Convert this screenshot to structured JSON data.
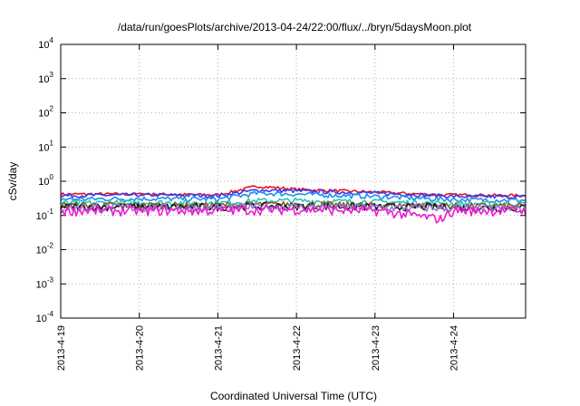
{
  "chart_data": {
    "type": "line",
    "title": "/data/run/goesPlots/archive/2013-04-24/22:00/flux/../bryn/5daysMoon.plot",
    "xlabel": "Coordinated Universal Time (UTC)",
    "ylabel": "cSv/day",
    "y_scale": "log",
    "ylim": [
      0.0001,
      10000
    ],
    "xlim": [
      "2013-04-19",
      "2013-04-24 22:00"
    ],
    "grid": true,
    "x_ticks": [
      "2013-4-19",
      "2013-4-20",
      "2013-4-21",
      "2013-4-22",
      "2013-4-23",
      "2013-4-24"
    ],
    "y_ticks": [
      {
        "base": "10",
        "exp": "-4"
      },
      {
        "base": "10",
        "exp": "-3"
      },
      {
        "base": "10",
        "exp": "-2"
      },
      {
        "base": "10",
        "exp": "-1"
      },
      {
        "base": "10",
        "exp": "0"
      },
      {
        "base": "10",
        "exp": "1"
      },
      {
        "base": "10",
        "exp": "2"
      },
      {
        "base": "10",
        "exp": "3"
      },
      {
        "base": "10",
        "exp": "4"
      }
    ],
    "x": [
      "2013-04-19",
      "2013-04-20",
      "2013-04-21",
      "2013-04-21 12:00",
      "2013-04-22",
      "2013-04-23",
      "2013-04-23 20:00",
      "2013-04-24",
      "2013-04-24 22:00"
    ],
    "series": [
      {
        "color": "#e8141c",
        "values": [
          0.42,
          0.42,
          0.4,
          0.72,
          0.58,
          0.48,
          0.4,
          0.4,
          0.38
        ]
      },
      {
        "color": "#3a3aee",
        "values": [
          0.38,
          0.4,
          0.38,
          0.55,
          0.52,
          0.45,
          0.38,
          0.36,
          0.35
        ]
      },
      {
        "color": "#1e8ef0",
        "values": [
          0.3,
          0.31,
          0.3,
          0.45,
          0.42,
          0.36,
          0.3,
          0.29,
          0.28
        ]
      },
      {
        "color": "#20c8b4",
        "values": [
          0.23,
          0.24,
          0.23,
          0.27,
          0.27,
          0.25,
          0.23,
          0.22,
          0.22
        ]
      },
      {
        "color": "#8a5a20",
        "values": [
          0.2,
          0.2,
          0.2,
          0.21,
          0.21,
          0.2,
          0.2,
          0.19,
          0.19
        ]
      },
      {
        "color": "#1a1a1a",
        "values": [
          0.18,
          0.18,
          0.18,
          0.19,
          0.19,
          0.18,
          0.18,
          0.17,
          0.17
        ]
      },
      {
        "color": "#9a7ad8",
        "values": [
          0.17,
          0.17,
          0.17,
          0.18,
          0.18,
          0.17,
          0.17,
          0.16,
          0.16
        ]
      },
      {
        "color": "#ee1ad0",
        "values": [
          0.14,
          0.14,
          0.14,
          0.15,
          0.15,
          0.14,
          0.08,
          0.14,
          0.14
        ]
      }
    ]
  }
}
